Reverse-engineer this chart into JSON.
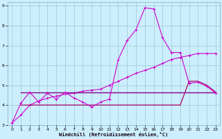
{
  "xlabel": "Windchill (Refroidissement éolien,°C)",
  "background_color": "#cceeff",
  "grid_color": "#99cccc",
  "xlim": [
    -0.5,
    23.5
  ],
  "ylim": [
    3,
    9.2
  ],
  "yticks": [
    3,
    4,
    5,
    6,
    7,
    8,
    9
  ],
  "xticks": [
    0,
    1,
    2,
    3,
    4,
    5,
    6,
    7,
    8,
    9,
    10,
    11,
    12,
    13,
    14,
    15,
    16,
    17,
    18,
    19,
    20,
    21,
    22,
    23
  ],
  "line1_x": [
    0,
    1,
    2,
    3,
    4,
    5,
    6,
    7,
    8,
    9,
    10,
    11,
    12,
    13,
    14,
    15,
    16,
    17,
    18,
    19,
    20,
    21,
    22,
    23
  ],
  "line1_y": [
    3.1,
    4.1,
    4.65,
    4.15,
    4.6,
    4.3,
    4.65,
    4.35,
    4.15,
    3.9,
    4.15,
    4.3,
    6.3,
    7.25,
    7.8,
    8.9,
    8.85,
    7.4,
    6.65,
    6.65,
    5.1,
    5.15,
    4.95,
    4.6
  ],
  "line1_color": "#cc00cc",
  "line1_lw": 0.8,
  "line2_x": [
    0,
    1,
    2,
    3,
    4,
    5,
    6,
    7,
    8,
    9,
    10,
    11,
    12,
    13,
    14,
    15,
    16,
    17,
    18,
    19,
    20,
    21,
    22,
    23
  ],
  "line2_y": [
    3.1,
    3.5,
    4.0,
    4.2,
    4.35,
    4.45,
    4.55,
    4.6,
    4.7,
    4.75,
    4.8,
    5.0,
    5.2,
    5.4,
    5.6,
    5.75,
    5.9,
    6.1,
    6.3,
    6.4,
    6.5,
    6.6,
    6.6,
    6.6
  ],
  "line2_color": "#cc00cc",
  "line2_lw": 0.8,
  "line3_x": [
    1,
    2,
    3,
    4,
    5,
    6,
    7,
    8,
    9,
    10,
    11,
    12,
    13,
    14,
    15,
    16,
    17,
    18,
    19,
    20,
    21,
    22,
    23
  ],
  "line3_y": [
    4.65,
    4.65,
    4.65,
    4.65,
    4.65,
    4.65,
    4.65,
    4.65,
    4.65,
    4.65,
    4.65,
    4.65,
    4.65,
    4.65,
    4.65,
    4.65,
    4.65,
    4.65,
    4.65,
    4.65,
    4.65,
    4.65,
    4.65
  ],
  "line3_color": "#880088",
  "line3_lw": 1.0,
  "line4_x": [
    1,
    2,
    3,
    4,
    5,
    6,
    7,
    8,
    9,
    10,
    11,
    12,
    13,
    14,
    15,
    16,
    17,
    18,
    19,
    20,
    21,
    22,
    23
  ],
  "line4_y": [
    4.0,
    4.0,
    4.0,
    4.0,
    4.0,
    4.0,
    4.0,
    4.0,
    4.0,
    4.0,
    4.0,
    4.0,
    4.0,
    4.0,
    4.0,
    4.0,
    4.0,
    4.0,
    4.0,
    5.2,
    5.2,
    5.0,
    4.65
  ],
  "line4_color": "#aa0066",
  "line4_lw": 0.9
}
